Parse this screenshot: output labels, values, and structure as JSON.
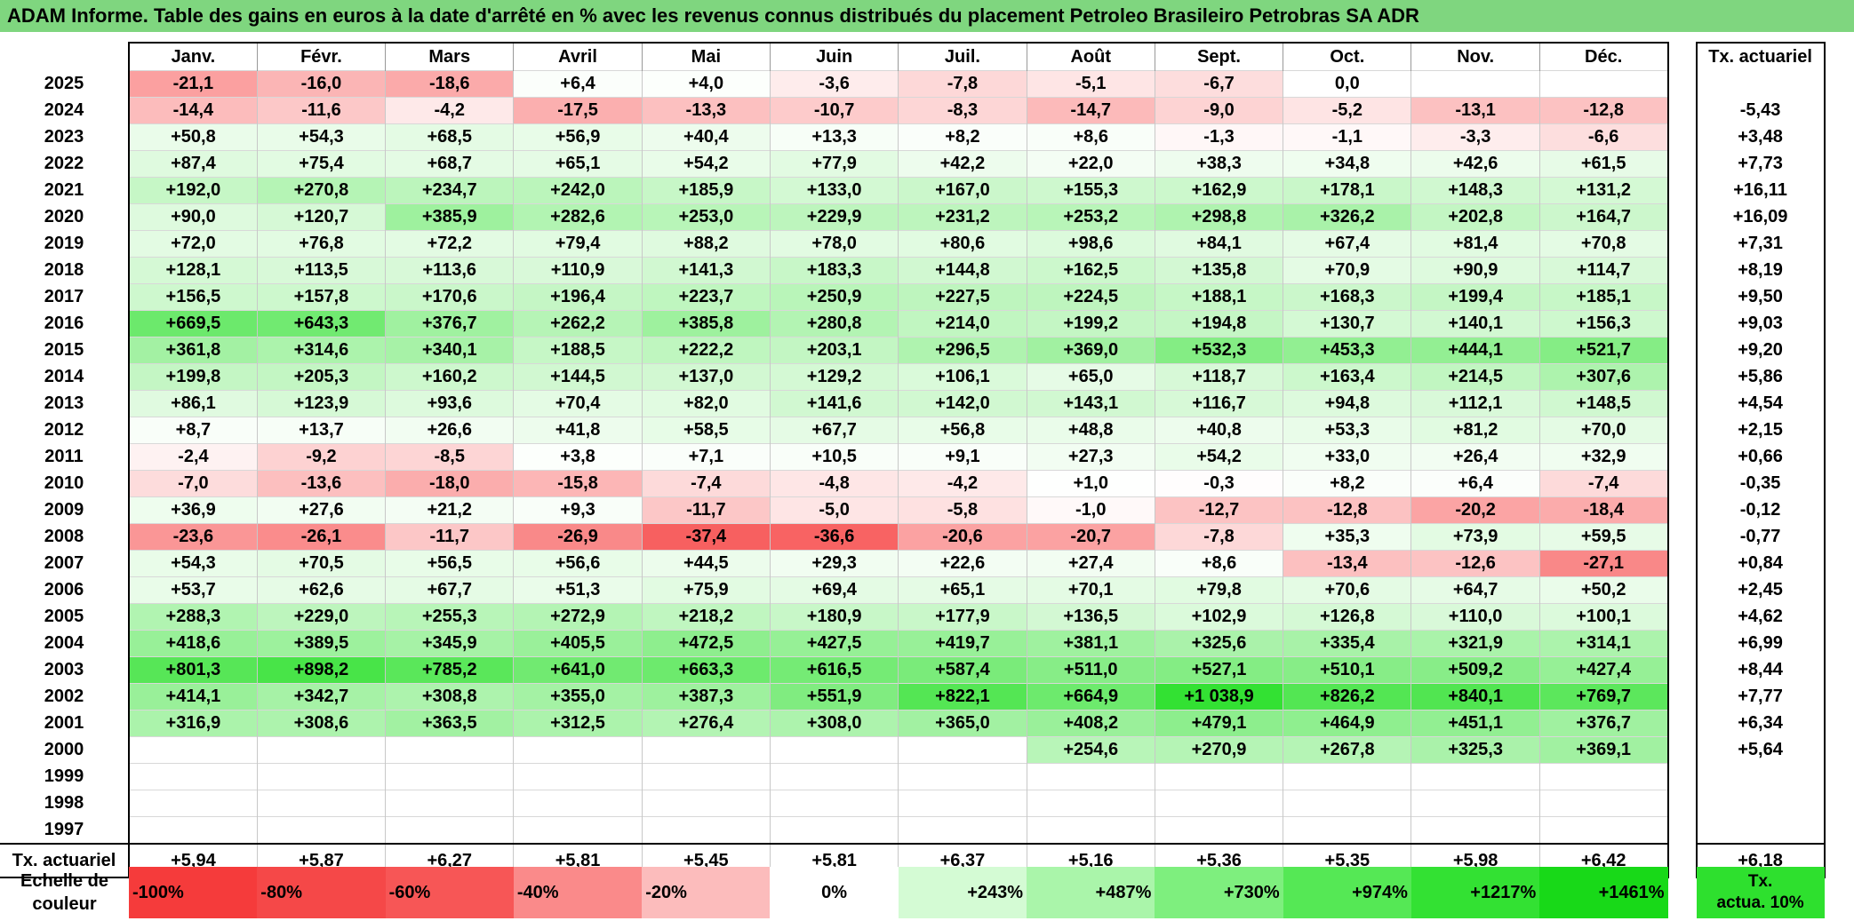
{
  "title": "ADAM Informe. Table des gains en euros à la date d'arrêté en % avec les revenus connus distribués du placement Petroleo Brasileiro Petrobras SA ADR",
  "months": [
    "Janv.",
    "Févr.",
    "Mars",
    "Avril",
    "Mai",
    "Juin",
    "Juil.",
    "Août",
    "Sept.",
    "Oct.",
    "Nov.",
    "Déc."
  ],
  "tx_header": "Tx. actuariel",
  "rows": [
    {
      "year": "2025",
      "values": [
        "-21,1",
        "-16,0",
        "-18,6",
        "+6,4",
        "+4,0",
        "-3,6",
        "-7,8",
        "-5,1",
        "-6,7",
        "0,0",
        "",
        ""
      ],
      "tx": ""
    },
    {
      "year": "2024",
      "values": [
        "-14,4",
        "-11,6",
        "-4,2",
        "-17,5",
        "-13,3",
        "-10,7",
        "-8,3",
        "-14,7",
        "-9,0",
        "-5,2",
        "-13,1",
        "-12,8"
      ],
      "tx": "-5,43"
    },
    {
      "year": "2023",
      "values": [
        "+50,8",
        "+54,3",
        "+68,5",
        "+56,9",
        "+40,4",
        "+13,3",
        "+8,2",
        "+8,6",
        "-1,3",
        "-1,1",
        "-3,3",
        "-6,6"
      ],
      "tx": "+3,48"
    },
    {
      "year": "2022",
      "values": [
        "+87,4",
        "+75,4",
        "+68,7",
        "+65,1",
        "+54,2",
        "+77,9",
        "+42,2",
        "+22,0",
        "+38,3",
        "+34,8",
        "+42,6",
        "+61,5"
      ],
      "tx": "+7,73"
    },
    {
      "year": "2021",
      "values": [
        "+192,0",
        "+270,8",
        "+234,7",
        "+242,0",
        "+185,9",
        "+133,0",
        "+167,0",
        "+155,3",
        "+162,9",
        "+178,1",
        "+148,3",
        "+131,2"
      ],
      "tx": "+16,11"
    },
    {
      "year": "2020",
      "values": [
        "+90,0",
        "+120,7",
        "+385,9",
        "+282,6",
        "+253,0",
        "+229,9",
        "+231,2",
        "+253,2",
        "+298,8",
        "+326,2",
        "+202,8",
        "+164,7"
      ],
      "tx": "+16,09"
    },
    {
      "year": "2019",
      "values": [
        "+72,0",
        "+76,8",
        "+72,2",
        "+79,4",
        "+88,2",
        "+78,0",
        "+80,6",
        "+98,6",
        "+84,1",
        "+67,4",
        "+81,4",
        "+70,8"
      ],
      "tx": "+7,31"
    },
    {
      "year": "2018",
      "values": [
        "+128,1",
        "+113,5",
        "+113,6",
        "+110,9",
        "+141,3",
        "+183,3",
        "+144,8",
        "+162,5",
        "+135,8",
        "+70,9",
        "+90,9",
        "+114,7"
      ],
      "tx": "+8,19"
    },
    {
      "year": "2017",
      "values": [
        "+156,5",
        "+157,8",
        "+170,6",
        "+196,4",
        "+223,7",
        "+250,9",
        "+227,5",
        "+224,5",
        "+188,1",
        "+168,3",
        "+199,4",
        "+185,1"
      ],
      "tx": "+9,50"
    },
    {
      "year": "2016",
      "values": [
        "+669,5",
        "+643,3",
        "+376,7",
        "+262,2",
        "+385,8",
        "+280,8",
        "+214,0",
        "+199,2",
        "+194,8",
        "+130,7",
        "+140,1",
        "+156,3"
      ],
      "tx": "+9,03"
    },
    {
      "year": "2015",
      "values": [
        "+361,8",
        "+314,6",
        "+340,1",
        "+188,5",
        "+222,2",
        "+203,1",
        "+296,5",
        "+369,0",
        "+532,3",
        "+453,3",
        "+444,1",
        "+521,7"
      ],
      "tx": "+9,20"
    },
    {
      "year": "2014",
      "values": [
        "+199,8",
        "+205,3",
        "+160,2",
        "+144,5",
        "+137,0",
        "+129,2",
        "+106,1",
        "+65,0",
        "+118,7",
        "+163,4",
        "+214,5",
        "+307,6"
      ],
      "tx": "+5,86"
    },
    {
      "year": "2013",
      "values": [
        "+86,1",
        "+123,9",
        "+93,6",
        "+70,4",
        "+82,0",
        "+141,6",
        "+142,0",
        "+143,1",
        "+116,7",
        "+94,8",
        "+112,1",
        "+148,5"
      ],
      "tx": "+4,54"
    },
    {
      "year": "2012",
      "values": [
        "+8,7",
        "+13,7",
        "+26,6",
        "+41,8",
        "+58,5",
        "+67,7",
        "+56,8",
        "+48,8",
        "+40,8",
        "+53,3",
        "+81,2",
        "+70,0"
      ],
      "tx": "+2,15"
    },
    {
      "year": "2011",
      "values": [
        "-2,4",
        "-9,2",
        "-8,5",
        "+3,8",
        "+7,1",
        "+10,5",
        "+9,1",
        "+27,3",
        "+54,2",
        "+33,0",
        "+26,4",
        "+32,9"
      ],
      "tx": "+0,66"
    },
    {
      "year": "2010",
      "values": [
        "-7,0",
        "-13,6",
        "-18,0",
        "-15,8",
        "-7,4",
        "-4,8",
        "-4,2",
        "+1,0",
        "-0,3",
        "+8,2",
        "+6,4",
        "-7,4"
      ],
      "tx": "-0,35"
    },
    {
      "year": "2009",
      "values": [
        "+36,9",
        "+27,6",
        "+21,2",
        "+9,3",
        "-11,7",
        "-5,0",
        "-5,8",
        "-1,0",
        "-12,7",
        "-12,8",
        "-20,2",
        "-18,4"
      ],
      "tx": "-0,12"
    },
    {
      "year": "2008",
      "values": [
        "-23,6",
        "-26,1",
        "-11,7",
        "-26,9",
        "-37,4",
        "-36,6",
        "-20,6",
        "-20,7",
        "-7,8",
        "+35,3",
        "+73,9",
        "+59,5"
      ],
      "tx": "-0,77"
    },
    {
      "year": "2007",
      "values": [
        "+54,3",
        "+70,5",
        "+56,5",
        "+56,6",
        "+44,5",
        "+29,3",
        "+22,6",
        "+27,4",
        "+8,6",
        "-13,4",
        "-12,6",
        "-27,1"
      ],
      "tx": "+0,84"
    },
    {
      "year": "2006",
      "values": [
        "+53,7",
        "+62,6",
        "+67,7",
        "+51,3",
        "+75,9",
        "+69,4",
        "+65,1",
        "+70,1",
        "+79,8",
        "+70,6",
        "+64,7",
        "+50,2"
      ],
      "tx": "+2,45"
    },
    {
      "year": "2005",
      "values": [
        "+288,3",
        "+229,0",
        "+255,3",
        "+272,9",
        "+218,2",
        "+180,9",
        "+177,9",
        "+136,5",
        "+102,9",
        "+126,8",
        "+110,0",
        "+100,1"
      ],
      "tx": "+4,62"
    },
    {
      "year": "2004",
      "values": [
        "+418,6",
        "+389,5",
        "+345,9",
        "+405,5",
        "+472,5",
        "+427,5",
        "+419,7",
        "+381,1",
        "+325,6",
        "+335,4",
        "+321,9",
        "+314,1"
      ],
      "tx": "+6,99"
    },
    {
      "year": "2003",
      "values": [
        "+801,3",
        "+898,2",
        "+785,2",
        "+641,0",
        "+663,3",
        "+616,5",
        "+587,4",
        "+511,0",
        "+527,1",
        "+510,1",
        "+509,2",
        "+427,4"
      ],
      "tx": "+8,44"
    },
    {
      "year": "2002",
      "values": [
        "+414,1",
        "+342,7",
        "+308,8",
        "+355,0",
        "+387,3",
        "+551,9",
        "+822,1",
        "+664,9",
        "+1 038,9",
        "+826,2",
        "+840,1",
        "+769,7"
      ],
      "tx": "+7,77"
    },
    {
      "year": "2001",
      "values": [
        "+316,9",
        "+308,6",
        "+363,5",
        "+312,5",
        "+276,4",
        "+308,0",
        "+365,0",
        "+408,2",
        "+479,1",
        "+464,9",
        "+451,1",
        "+376,7"
      ],
      "tx": "+6,34"
    },
    {
      "year": "2000",
      "values": [
        "",
        "",
        "",
        "",
        "",
        "",
        "",
        "+254,6",
        "+270,9",
        "+267,8",
        "+325,3",
        "+369,1"
      ],
      "tx": "+5,64"
    },
    {
      "year": "1999",
      "values": [
        "",
        "",
        "",
        "",
        "",
        "",
        "",
        "",
        "",
        "",
        "",
        ""
      ],
      "tx": ""
    },
    {
      "year": "1998",
      "values": [
        "",
        "",
        "",
        "",
        "",
        "",
        "",
        "",
        "",
        "",
        "",
        ""
      ],
      "tx": ""
    },
    {
      "year": "1997",
      "values": [
        "",
        "",
        "",
        "",
        "",
        "",
        "",
        "",
        "",
        "",
        "",
        ""
      ],
      "tx": ""
    }
  ],
  "footer": {
    "label": "Tx. actuariel",
    "values": [
      "+5,94",
      "+5,87",
      "+6,27",
      "+5,81",
      "+5,45",
      "+5,81",
      "+6,37",
      "+5,16",
      "+5,36",
      "+5,35",
      "+5,98",
      "+6,42"
    ],
    "total": "+6,18"
  },
  "legend": {
    "label_line1": "Echelle de",
    "label_line2": "couleur",
    "items": [
      {
        "text": "-100%",
        "color": "#f53b3b"
      },
      {
        "text": "-80%",
        "color": "#f54848"
      },
      {
        "text": "-60%",
        "color": "#f75656"
      },
      {
        "text": "-40%",
        "color": "#fa8a8a"
      },
      {
        "text": "-20%",
        "color": "#fcbcbc"
      },
      {
        "text": "0%",
        "color": "#ffffff"
      },
      {
        "text": "+243%",
        "color": "#d4fbd4"
      },
      {
        "text": "+487%",
        "color": "#aaf5aa"
      },
      {
        "text": "+730%",
        "color": "#7eef7e"
      },
      {
        "text": "+974%",
        "color": "#55e855"
      },
      {
        "text": "+1217%",
        "color": "#33e133"
      },
      {
        "text": "+1461%",
        "color": "#18d918"
      }
    ],
    "tx_line1": "Tx.",
    "tx_line2": "actua. 10%",
    "tx_color": "#2ee02e"
  }
}
